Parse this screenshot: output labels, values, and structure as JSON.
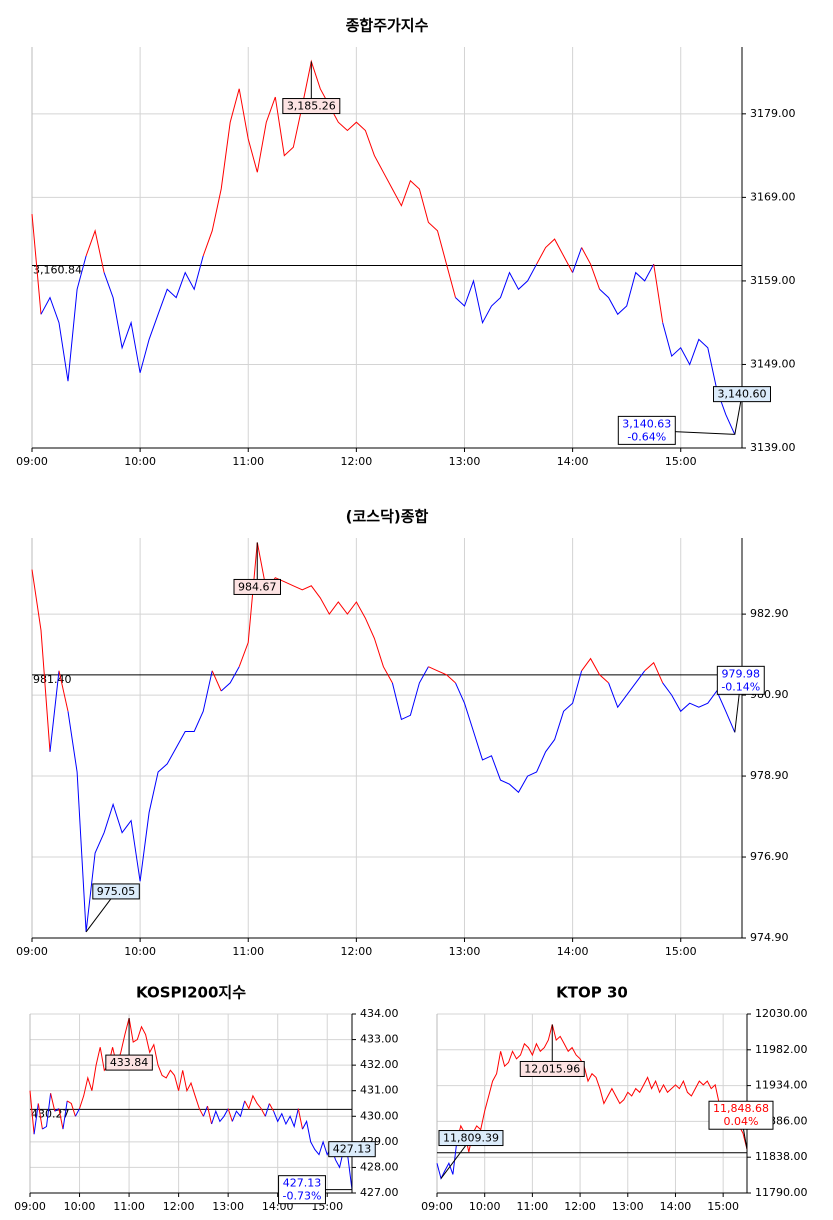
{
  "chart_data": [
    {
      "type": "line",
      "title": "종합주가지수",
      "up_color": "#ff0000",
      "down_color": "#0000ff",
      "xlim": [
        "09:00",
        "15:34"
      ],
      "xticks": [
        "09:00",
        "10:00",
        "11:00",
        "12:00",
        "13:00",
        "14:00",
        "15:00"
      ],
      "ylim": [
        3139,
        3187
      ],
      "yticks": [
        {
          "value": 3139,
          "label": "3139.00"
        },
        {
          "value": 3149,
          "label": "3149.00"
        },
        {
          "value": 3159,
          "label": "3159.00"
        },
        {
          "value": 3169,
          "label": "3169.00"
        },
        {
          "value": 3179,
          "label": "3179.00"
        }
      ],
      "reference": {
        "value": 3160.84,
        "label": "3,160.84"
      },
      "close": {
        "value": 3140.63,
        "label": "3,140.63",
        "change": {
          "value": -0.64,
          "label": "-0.64%"
        }
      },
      "x": [
        "09:00",
        "09:05",
        "09:10",
        "09:15",
        "09:20",
        "09:25",
        "09:30",
        "09:35",
        "09:40",
        "09:45",
        "09:50",
        "09:55",
        "10:00",
        "10:05",
        "10:10",
        "10:15",
        "10:20",
        "10:25",
        "10:30",
        "10:35",
        "10:40",
        "10:45",
        "10:50",
        "10:55",
        "11:00",
        "11:05",
        "11:10",
        "11:15",
        "11:20",
        "11:25",
        "11:30",
        "11:35",
        "11:40",
        "11:45",
        "11:50",
        "11:55",
        "12:00",
        "12:05",
        "12:10",
        "12:15",
        "12:20",
        "12:25",
        "12:30",
        "12:35",
        "12:40",
        "12:45",
        "12:50",
        "12:55",
        "13:00",
        "13:05",
        "13:10",
        "13:15",
        "13:20",
        "13:25",
        "13:30",
        "13:35",
        "13:40",
        "13:45",
        "13:50",
        "13:55",
        "14:00",
        "14:05",
        "14:10",
        "14:15",
        "14:20",
        "14:25",
        "14:30",
        "14:35",
        "14:40",
        "14:45",
        "14:50",
        "14:55",
        "15:00",
        "15:05",
        "15:10",
        "15:15",
        "15:20",
        "15:25",
        "15:30"
      ],
      "values": [
        3167,
        3155,
        3157,
        3154,
        3147,
        3158,
        3162,
        3165,
        3160,
        3157,
        3151,
        3154,
        3148,
        3152,
        3155,
        3158,
        3157,
        3160,
        3158,
        3162,
        3165,
        3170,
        3178,
        3182,
        3176,
        3172,
        3178,
        3181,
        3174,
        3175,
        3180,
        3185.26,
        3182,
        3180,
        3178,
        3177,
        3178,
        3177,
        3174,
        3172,
        3170,
        3168,
        3171,
        3170,
        3166,
        3165,
        3161,
        3157,
        3156,
        3159,
        3154,
        3156,
        3157,
        3160,
        3158,
        3159,
        3161,
        3163,
        3164,
        3162,
        3160,
        3163,
        3161,
        3158,
        3157,
        3155,
        3156,
        3160,
        3159,
        3161,
        3154,
        3150,
        3151,
        3149,
        3152,
        3151,
        3146,
        3143,
        3140.6
      ],
      "value_labels": [
        null,
        null,
        null,
        null,
        null,
        null,
        null,
        null,
        null,
        null,
        null,
        null,
        null,
        null,
        null,
        null,
        null,
        null,
        null,
        null,
        null,
        null,
        null,
        null,
        null,
        null,
        null,
        null,
        null,
        null,
        null,
        "3,185.26",
        null,
        null,
        null,
        null,
        null,
        null,
        null,
        null,
        null,
        null,
        null,
        null,
        null,
        null,
        null,
        null,
        null,
        null,
        null,
        null,
        null,
        null,
        null,
        null,
        null,
        null,
        null,
        null,
        null,
        null,
        null,
        null,
        null,
        null,
        null,
        null,
        null,
        null,
        null,
        null,
        null,
        null,
        null,
        null,
        null,
        null,
        "3,140.60"
      ]
    },
    {
      "type": "line",
      "title": "(코스닥)종합",
      "up_color": "#ff0000",
      "down_color": "#0000ff",
      "xlim": [
        "09:00",
        "15:34"
      ],
      "xticks": [
        "09:00",
        "10:00",
        "11:00",
        "12:00",
        "13:00",
        "14:00",
        "15:00"
      ],
      "ylim": [
        974.9,
        984.78
      ],
      "yticks": [
        {
          "value": 974.9,
          "label": "974.90"
        },
        {
          "value": 976.9,
          "label": "976.90"
        },
        {
          "value": 978.9,
          "label": "978.90"
        },
        {
          "value": 980.9,
          "label": "980.90"
        },
        {
          "value": 982.9,
          "label": "982.90"
        }
      ],
      "reference": {
        "value": 981.4,
        "label": "981.40"
      },
      "close": {
        "value": 979.98,
        "label": "979.98",
        "change": {
          "value": -0.14,
          "label": "-0.14%"
        }
      },
      "x": [
        "09:00",
        "09:05",
        "09:10",
        "09:15",
        "09:20",
        "09:25",
        "09:30",
        "09:35",
        "09:40",
        "09:45",
        "09:50",
        "09:55",
        "10:00",
        "10:05",
        "10:10",
        "10:15",
        "10:20",
        "10:25",
        "10:30",
        "10:35",
        "10:40",
        "10:45",
        "10:50",
        "10:55",
        "11:00",
        "11:05",
        "11:10",
        "11:15",
        "11:20",
        "11:25",
        "11:30",
        "11:35",
        "11:40",
        "11:45",
        "11:50",
        "11:55",
        "12:00",
        "12:05",
        "12:10",
        "12:15",
        "12:20",
        "12:25",
        "12:30",
        "12:35",
        "12:40",
        "12:45",
        "12:50",
        "12:55",
        "13:00",
        "13:05",
        "13:10",
        "13:15",
        "13:20",
        "13:25",
        "13:30",
        "13:35",
        "13:40",
        "13:45",
        "13:50",
        "13:55",
        "14:00",
        "14:05",
        "14:10",
        "14:15",
        "14:20",
        "14:25",
        "14:30",
        "14:35",
        "14:40",
        "14:45",
        "14:50",
        "14:55",
        "15:00",
        "15:05",
        "15:10",
        "15:15",
        "15:20",
        "15:25",
        "15:30"
      ],
      "values": [
        984.0,
        982.5,
        979.5,
        981.5,
        980.5,
        979.0,
        975.05,
        977.0,
        977.5,
        978.2,
        977.5,
        977.8,
        976.3,
        978.0,
        979.0,
        979.2,
        979.6,
        980.0,
        980.0,
        980.5,
        981.5,
        981.0,
        981.2,
        981.6,
        982.2,
        984.67,
        983.5,
        983.8,
        983.7,
        983.6,
        983.5,
        983.6,
        983.3,
        982.9,
        983.2,
        982.9,
        983.2,
        982.8,
        982.3,
        981.6,
        981.2,
        980.3,
        980.4,
        981.2,
        981.6,
        981.5,
        981.4,
        981.2,
        980.7,
        980.0,
        979.3,
        979.4,
        978.8,
        978.7,
        978.5,
        978.9,
        979.0,
        979.5,
        979.8,
        980.5,
        980.7,
        981.5,
        981.8,
        981.4,
        981.2,
        980.6,
        980.9,
        981.2,
        981.5,
        981.7,
        981.2,
        980.9,
        980.5,
        980.7,
        980.6,
        980.7,
        981.0,
        980.5,
        979.98
      ],
      "value_labels": [
        null,
        null,
        null,
        null,
        null,
        null,
        "975.05",
        null,
        null,
        null,
        null,
        null,
        null,
        null,
        null,
        null,
        null,
        null,
        null,
        null,
        null,
        null,
        null,
        null,
        null,
        "984.67",
        null,
        null,
        null,
        null,
        null,
        null,
        null,
        null,
        null,
        null,
        null,
        null,
        null,
        null,
        null,
        null,
        null,
        null,
        null,
        null,
        null,
        null,
        null,
        null,
        null,
        null,
        null,
        null,
        null,
        null,
        null,
        null,
        null,
        null,
        null,
        null,
        null,
        null,
        null,
        null,
        null,
        null,
        null,
        null,
        null,
        null,
        null,
        null,
        null,
        null,
        null,
        null,
        null
      ]
    },
    {
      "type": "line",
      "title": "KOSPI200지수",
      "up_color": "#ff0000",
      "down_color": "#0000ff",
      "xlim": [
        "09:00",
        "15:30"
      ],
      "xticks": [
        "09:00",
        "10:00",
        "11:00",
        "12:00",
        "13:00",
        "14:00",
        "15:00"
      ],
      "ylim": [
        427,
        434
      ],
      "yticks": [
        {
          "value": 427,
          "label": "427.00"
        },
        {
          "value": 428,
          "label": "428.00"
        },
        {
          "value": 429,
          "label": "429.00"
        },
        {
          "value": 430,
          "label": "430.00"
        },
        {
          "value": 431,
          "label": "431.00"
        },
        {
          "value": 432,
          "label": "432.00"
        },
        {
          "value": 433,
          "label": "433.00"
        },
        {
          "value": 434,
          "label": "434.00"
        }
      ],
      "reference": {
        "value": 430.27,
        "label": "430.27"
      },
      "close": {
        "value": 427.13,
        "label": "427.13",
        "change": {
          "value": -0.73,
          "label": "-0.73%"
        }
      },
      "x": [
        "09:00",
        "09:05",
        "09:10",
        "09:15",
        "09:20",
        "09:25",
        "09:30",
        "09:35",
        "09:40",
        "09:45",
        "09:50",
        "09:55",
        "10:00",
        "10:05",
        "10:10",
        "10:15",
        "10:20",
        "10:25",
        "10:30",
        "10:35",
        "10:40",
        "10:45",
        "10:50",
        "10:55",
        "11:00",
        "11:05",
        "11:10",
        "11:15",
        "11:20",
        "11:25",
        "11:30",
        "11:35",
        "11:40",
        "11:45",
        "11:50",
        "11:55",
        "12:00",
        "12:05",
        "12:10",
        "12:15",
        "12:20",
        "12:25",
        "12:30",
        "12:35",
        "12:40",
        "12:45",
        "12:50",
        "12:55",
        "13:00",
        "13:05",
        "13:10",
        "13:15",
        "13:20",
        "13:25",
        "13:30",
        "13:35",
        "13:40",
        "13:45",
        "13:50",
        "13:55",
        "14:00",
        "14:05",
        "14:10",
        "14:15",
        "14:20",
        "14:25",
        "14:30",
        "14:35",
        "14:40",
        "14:45",
        "14:50",
        "14:55",
        "15:00",
        "15:05",
        "15:10",
        "15:15",
        "15:20",
        "15:25",
        "15:30"
      ],
      "values": [
        431.0,
        429.3,
        430.5,
        429.5,
        429.6,
        430.9,
        430.2,
        430.3,
        429.5,
        430.6,
        430.5,
        430.0,
        430.3,
        430.8,
        431.5,
        431.0,
        432.0,
        432.7,
        431.8,
        432.0,
        432.7,
        432.0,
        432.5,
        433.2,
        433.84,
        432.9,
        433.0,
        433.5,
        433.2,
        432.5,
        432.8,
        432.0,
        431.6,
        431.5,
        431.8,
        431.6,
        431.0,
        431.8,
        431.0,
        431.3,
        430.8,
        430.3,
        430.0,
        430.4,
        429.7,
        430.2,
        429.8,
        430.0,
        430.3,
        429.8,
        430.2,
        430.0,
        430.6,
        430.3,
        430.8,
        430.5,
        430.3,
        430.0,
        430.5,
        430.2,
        429.8,
        430.1,
        429.7,
        430.0,
        429.6,
        430.3,
        429.5,
        429.8,
        429.0,
        428.7,
        428.5,
        429.0,
        428.5,
        428.8,
        428.3,
        428.0,
        428.7,
        428.4,
        427.13
      ],
      "value_labels": [
        null,
        null,
        null,
        null,
        null,
        null,
        null,
        null,
        null,
        null,
        null,
        null,
        null,
        null,
        null,
        null,
        null,
        null,
        null,
        null,
        null,
        null,
        null,
        null,
        "433.84",
        null,
        null,
        null,
        null,
        null,
        null,
        null,
        null,
        null,
        null,
        null,
        null,
        null,
        null,
        null,
        null,
        null,
        null,
        null,
        null,
        null,
        null,
        null,
        null,
        null,
        null,
        null,
        null,
        null,
        null,
        null,
        null,
        null,
        null,
        null,
        null,
        null,
        null,
        null,
        null,
        null,
        null,
        null,
        null,
        null,
        null,
        null,
        null,
        null,
        null,
        null,
        null,
        null,
        "427.13"
      ]
    },
    {
      "type": "line",
      "title": "KTOP 30",
      "up_color": "#ff0000",
      "down_color": "#0000ff",
      "xlim": [
        "09:00",
        "15:30"
      ],
      "xticks": [
        "09:00",
        "10:00",
        "11:00",
        "12:00",
        "13:00",
        "14:00",
        "15:00"
      ],
      "ylim": [
        11790,
        12030
      ],
      "yticks": [
        {
          "value": 11790,
          "label": "11790.00"
        },
        {
          "value": 11838,
          "label": "11838.00"
        },
        {
          "value": 11886,
          "label": "11886.00"
        },
        {
          "value": 11934,
          "label": "11934.00"
        },
        {
          "value": 11982,
          "label": "11982.00"
        },
        {
          "value": 12030,
          "label": "12030.00"
        }
      ],
      "reference": {
        "value": 11844
      },
      "close": {
        "value": 11848.68,
        "label": "11,848.68",
        "change": {
          "value": 0.04,
          "label": "0.04%"
        }
      },
      "x": [
        "09:00",
        "09:05",
        "09:10",
        "09:15",
        "09:20",
        "09:25",
        "09:30",
        "09:35",
        "09:40",
        "09:45",
        "09:50",
        "09:55",
        "10:00",
        "10:05",
        "10:10",
        "10:15",
        "10:20",
        "10:25",
        "10:30",
        "10:35",
        "10:40",
        "10:45",
        "10:50",
        "10:55",
        "11:00",
        "11:05",
        "11:10",
        "11:15",
        "11:20",
        "11:25",
        "11:30",
        "11:35",
        "11:40",
        "11:45",
        "11:50",
        "11:55",
        "12:00",
        "12:05",
        "12:10",
        "12:15",
        "12:20",
        "12:25",
        "12:30",
        "12:35",
        "12:40",
        "12:45",
        "12:50",
        "12:55",
        "13:00",
        "13:05",
        "13:10",
        "13:15",
        "13:20",
        "13:25",
        "13:30",
        "13:35",
        "13:40",
        "13:45",
        "13:50",
        "13:55",
        "14:00",
        "14:05",
        "14:10",
        "14:15",
        "14:20",
        "14:25",
        "14:30",
        "14:35",
        "14:40",
        "14:45",
        "14:50",
        "14:55",
        "15:00",
        "15:05",
        "15:10",
        "15:15",
        "15:20",
        "15:25",
        "15:30"
      ],
      "values": [
        11830,
        11809.39,
        11820,
        11830,
        11815,
        11860,
        11880,
        11870,
        11845,
        11870,
        11880,
        11875,
        11900,
        11920,
        11940,
        11950,
        11980,
        11960,
        11965,
        11980,
        11970,
        11975,
        11990,
        11985,
        11975,
        11990,
        11980,
        11985,
        11995,
        12015.96,
        11995,
        12000,
        11990,
        11980,
        11985,
        11975,
        11970,
        11960,
        11940,
        11950,
        11945,
        11930,
        11910,
        11920,
        11930,
        11920,
        11910,
        11915,
        11925,
        11920,
        11930,
        11925,
        11935,
        11945,
        11930,
        11940,
        11925,
        11935,
        11925,
        11930,
        11935,
        11930,
        11940,
        11925,
        11920,
        11930,
        11940,
        11935,
        11940,
        11930,
        11935,
        11910,
        11900,
        11895,
        11905,
        11890,
        11880,
        11870,
        11848.68
      ],
      "value_labels": [
        null,
        "11,809.39",
        null,
        null,
        null,
        null,
        null,
        null,
        null,
        null,
        null,
        null,
        null,
        null,
        null,
        null,
        null,
        null,
        null,
        null,
        null,
        null,
        null,
        null,
        null,
        null,
        null,
        null,
        null,
        "12,015.96",
        null,
        null,
        null,
        null,
        null,
        null,
        null,
        null,
        null,
        null,
        null,
        null,
        null,
        null,
        null,
        null,
        null,
        null,
        null,
        null,
        null,
        null,
        null,
        null,
        null,
        null,
        null,
        null,
        null,
        null,
        null,
        null,
        null,
        null,
        null,
        null,
        null,
        null,
        null,
        null,
        null,
        null,
        null,
        null,
        null,
        null,
        null,
        null,
        null
      ]
    }
  ]
}
